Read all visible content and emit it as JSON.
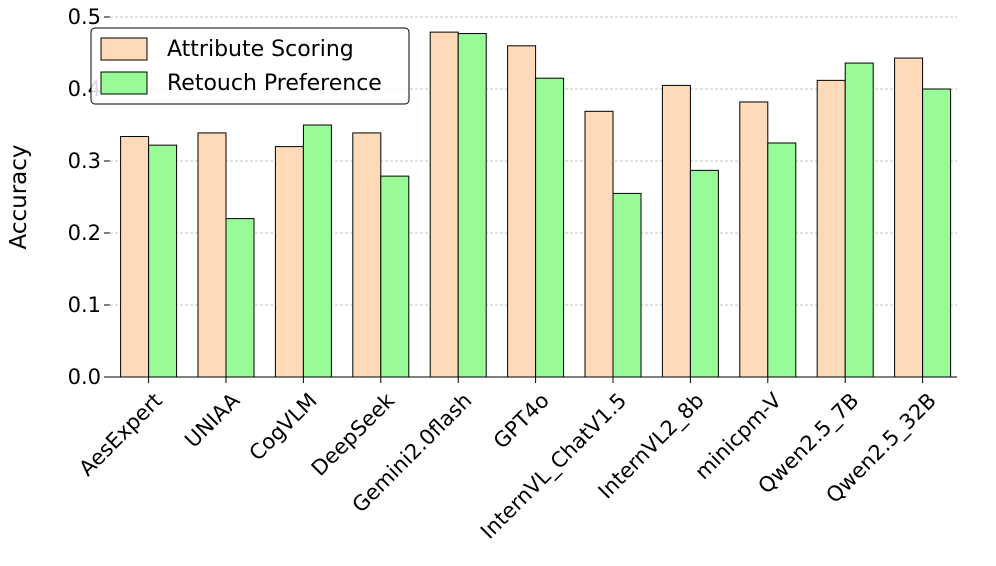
{
  "chart_data": {
    "type": "bar",
    "title": "",
    "xlabel": "",
    "ylabel": "Accuracy",
    "ylim": [
      0,
      0.5
    ],
    "yticks": [
      "0.0",
      "0.1",
      "0.2",
      "0.3",
      "0.4",
      "0.5"
    ],
    "grid": "horizontal dashed",
    "legend_position": "top-left",
    "categories": [
      "AesExpert",
      "UNIAA",
      "CogVLM",
      "DeepSeek",
      "Gemini2.0flash",
      "GPT4o",
      "InternVL_ChatV1.5",
      "InternVL2_8b",
      "minicpm-V",
      "Qwen2.5_7B",
      "Qwen2.5_32B"
    ],
    "series": [
      {
        "name": "Attribute Scoring",
        "color": "#FFDAB9",
        "values": [
          0.334,
          0.339,
          0.32,
          0.339,
          0.479,
          0.46,
          0.369,
          0.405,
          0.382,
          0.412,
          0.443
        ]
      },
      {
        "name": "Retouch Preference",
        "color": "#98FB98",
        "values": [
          0.322,
          0.22,
          0.35,
          0.279,
          0.477,
          0.415,
          0.255,
          0.287,
          0.325,
          0.436,
          0.4
        ]
      }
    ]
  }
}
